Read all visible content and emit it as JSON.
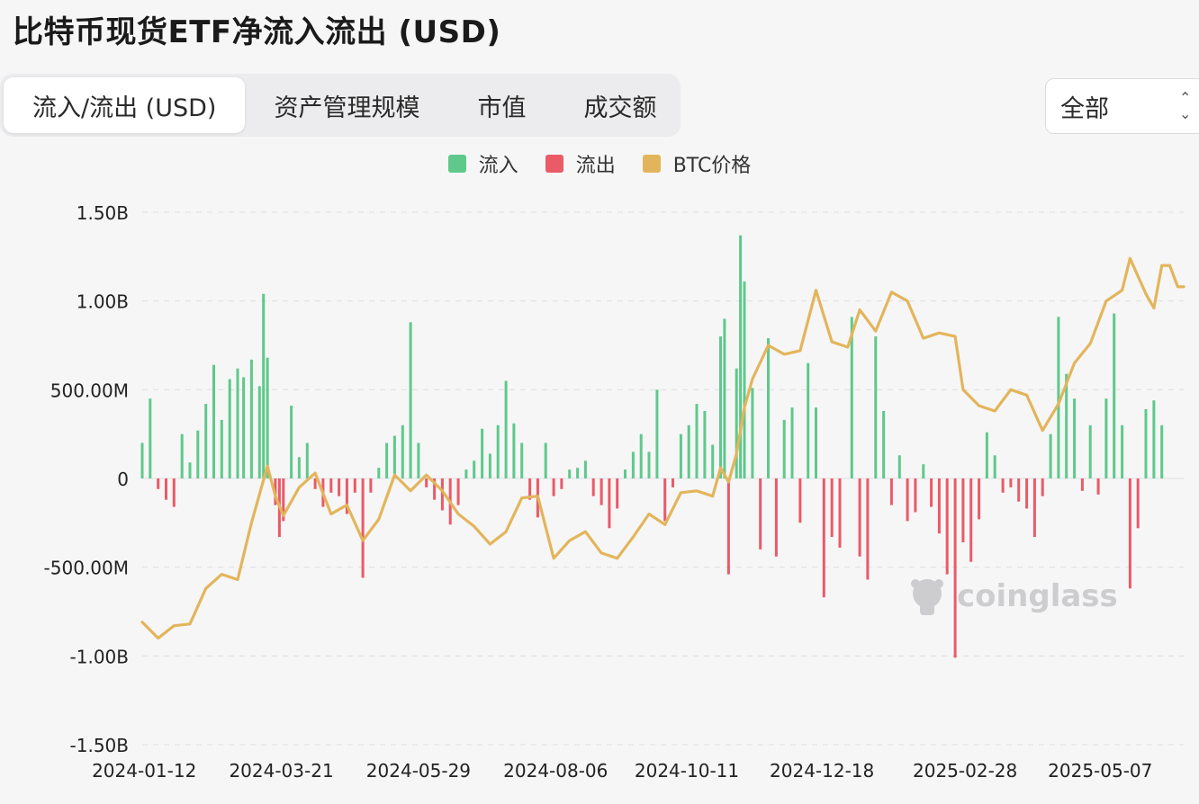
{
  "header": {
    "title": "比特币现货ETF净流入流出 (USD)"
  },
  "tabs": [
    {
      "label": "流入/流出 (USD)",
      "active": true
    },
    {
      "label": "资产管理规模",
      "active": false
    },
    {
      "label": "市值",
      "active": false
    },
    {
      "label": "成交额",
      "active": false
    }
  ],
  "range_select": {
    "value": "全部"
  },
  "colors": {
    "inflow": "#5ec98b",
    "outflow": "#ea5a67",
    "price": "#e3b55b"
  },
  "watermark": {
    "text": "coinglass",
    "icon": "coinglass-logo-icon"
  },
  "chart_data": {
    "type": "bar",
    "title": "",
    "xlabel": "",
    "ylabel": "",
    "ylim": [
      -1500000000,
      1500000000
    ],
    "yticks": [
      {
        "value": 1500000000,
        "label": "1.50B"
      },
      {
        "value": 1000000000,
        "label": "1.00B"
      },
      {
        "value": 500000000,
        "label": "500.00M"
      },
      {
        "value": 0,
        "label": "0"
      },
      {
        "value": -500000000,
        "label": "-500.00M"
      },
      {
        "value": -1000000000,
        "label": "-1.00B"
      },
      {
        "value": -1500000000,
        "label": "-1.50B"
      }
    ],
    "xlim": [
      "2024-01-11",
      "2025-06-18"
    ],
    "xticks": [
      "2024-01-12",
      "2024-03-21",
      "2024-05-29",
      "2024-08-06",
      "2024-10-11",
      "2024-12-18",
      "2025-02-28",
      "2025-05-07"
    ],
    "grid": true,
    "legend": {
      "position": "top-center",
      "entries": [
        "流入",
        "流出",
        "BTC价格"
      ]
    },
    "series": [
      {
        "name": "流入/流出",
        "kind": "bar",
        "points": [
          {
            "x": "2024-01-11",
            "y": 200000000
          },
          {
            "x": "2024-01-15",
            "y": 450000000
          },
          {
            "x": "2024-01-19",
            "y": -60000000
          },
          {
            "x": "2024-01-23",
            "y": -120000000
          },
          {
            "x": "2024-01-27",
            "y": -160000000
          },
          {
            "x": "2024-01-31",
            "y": 250000000
          },
          {
            "x": "2024-02-04",
            "y": 90000000
          },
          {
            "x": "2024-02-08",
            "y": 270000000
          },
          {
            "x": "2024-02-12",
            "y": 420000000
          },
          {
            "x": "2024-02-16",
            "y": 640000000
          },
          {
            "x": "2024-02-20",
            "y": 330000000
          },
          {
            "x": "2024-02-24",
            "y": 560000000
          },
          {
            "x": "2024-02-28",
            "y": 620000000
          },
          {
            "x": "2024-03-02",
            "y": 570000000
          },
          {
            "x": "2024-03-06",
            "y": 670000000
          },
          {
            "x": "2024-03-10",
            "y": 520000000
          },
          {
            "x": "2024-03-12",
            "y": 1040000000
          },
          {
            "x": "2024-03-14",
            "y": 680000000
          },
          {
            "x": "2024-03-18",
            "y": -150000000
          },
          {
            "x": "2024-03-20",
            "y": -330000000
          },
          {
            "x": "2024-03-22",
            "y": -240000000
          },
          {
            "x": "2024-03-26",
            "y": 410000000
          },
          {
            "x": "2024-03-30",
            "y": 120000000
          },
          {
            "x": "2024-04-03",
            "y": 200000000
          },
          {
            "x": "2024-04-07",
            "y": -60000000
          },
          {
            "x": "2024-04-11",
            "y": -160000000
          },
          {
            "x": "2024-04-15",
            "y": -80000000
          },
          {
            "x": "2024-04-19",
            "y": -100000000
          },
          {
            "x": "2024-04-23",
            "y": -200000000
          },
          {
            "x": "2024-04-27",
            "y": -80000000
          },
          {
            "x": "2024-05-01",
            "y": -560000000
          },
          {
            "x": "2024-05-05",
            "y": -80000000
          },
          {
            "x": "2024-05-09",
            "y": 60000000
          },
          {
            "x": "2024-05-13",
            "y": 200000000
          },
          {
            "x": "2024-05-17",
            "y": 240000000
          },
          {
            "x": "2024-05-21",
            "y": 300000000
          },
          {
            "x": "2024-05-25",
            "y": 880000000
          },
          {
            "x": "2024-05-29",
            "y": 200000000
          },
          {
            "x": "2024-06-02",
            "y": -50000000
          },
          {
            "x": "2024-06-06",
            "y": -120000000
          },
          {
            "x": "2024-06-10",
            "y": -180000000
          },
          {
            "x": "2024-06-14",
            "y": -260000000
          },
          {
            "x": "2024-06-18",
            "y": -150000000
          },
          {
            "x": "2024-06-22",
            "y": 50000000
          },
          {
            "x": "2024-06-26",
            "y": 100000000
          },
          {
            "x": "2024-06-30",
            "y": 280000000
          },
          {
            "x": "2024-07-04",
            "y": 140000000
          },
          {
            "x": "2024-07-08",
            "y": 300000000
          },
          {
            "x": "2024-07-12",
            "y": 550000000
          },
          {
            "x": "2024-07-16",
            "y": 310000000
          },
          {
            "x": "2024-07-20",
            "y": 200000000
          },
          {
            "x": "2024-07-24",
            "y": -120000000
          },
          {
            "x": "2024-07-28",
            "y": -220000000
          },
          {
            "x": "2024-08-01",
            "y": 200000000
          },
          {
            "x": "2024-08-05",
            "y": -100000000
          },
          {
            "x": "2024-08-09",
            "y": -60000000
          },
          {
            "x": "2024-08-13",
            "y": 50000000
          },
          {
            "x": "2024-08-17",
            "y": 60000000
          },
          {
            "x": "2024-08-21",
            "y": 100000000
          },
          {
            "x": "2024-08-25",
            "y": -100000000
          },
          {
            "x": "2024-08-29",
            "y": -150000000
          },
          {
            "x": "2024-09-02",
            "y": -280000000
          },
          {
            "x": "2024-09-06",
            "y": -170000000
          },
          {
            "x": "2024-09-10",
            "y": 50000000
          },
          {
            "x": "2024-09-14",
            "y": 150000000
          },
          {
            "x": "2024-09-18",
            "y": 250000000
          },
          {
            "x": "2024-09-22",
            "y": 150000000
          },
          {
            "x": "2024-09-26",
            "y": 500000000
          },
          {
            "x": "2024-09-30",
            "y": -240000000
          },
          {
            "x": "2024-10-04",
            "y": -50000000
          },
          {
            "x": "2024-10-08",
            "y": 250000000
          },
          {
            "x": "2024-10-12",
            "y": 300000000
          },
          {
            "x": "2024-10-16",
            "y": 420000000
          },
          {
            "x": "2024-10-20",
            "y": 380000000
          },
          {
            "x": "2024-10-24",
            "y": 190000000
          },
          {
            "x": "2024-10-28",
            "y": 800000000
          },
          {
            "x": "2024-10-30",
            "y": 900000000
          },
          {
            "x": "2024-11-01",
            "y": -540000000
          },
          {
            "x": "2024-11-05",
            "y": 620000000
          },
          {
            "x": "2024-11-07",
            "y": 1370000000
          },
          {
            "x": "2024-11-09",
            "y": 1110000000
          },
          {
            "x": "2024-11-13",
            "y": 510000000
          },
          {
            "x": "2024-11-17",
            "y": -400000000
          },
          {
            "x": "2024-11-21",
            "y": 790000000
          },
          {
            "x": "2024-11-25",
            "y": -440000000
          },
          {
            "x": "2024-11-29",
            "y": 330000000
          },
          {
            "x": "2024-12-03",
            "y": 400000000
          },
          {
            "x": "2024-12-07",
            "y": -250000000
          },
          {
            "x": "2024-12-11",
            "y": 650000000
          },
          {
            "x": "2024-12-15",
            "y": 400000000
          },
          {
            "x": "2024-12-19",
            "y": -670000000
          },
          {
            "x": "2024-12-23",
            "y": -330000000
          },
          {
            "x": "2024-12-27",
            "y": -390000000
          },
          {
            "x": "2025-01-02",
            "y": 910000000
          },
          {
            "x": "2025-01-06",
            "y": -440000000
          },
          {
            "x": "2025-01-10",
            "y": -570000000
          },
          {
            "x": "2025-01-14",
            "y": 800000000
          },
          {
            "x": "2025-01-18",
            "y": 380000000
          },
          {
            "x": "2025-01-22",
            "y": -150000000
          },
          {
            "x": "2025-01-26",
            "y": 130000000
          },
          {
            "x": "2025-01-30",
            "y": -240000000
          },
          {
            "x": "2025-02-03",
            "y": -190000000
          },
          {
            "x": "2025-02-07",
            "y": 80000000
          },
          {
            "x": "2025-02-11",
            "y": -160000000
          },
          {
            "x": "2025-02-15",
            "y": -310000000
          },
          {
            "x": "2025-02-19",
            "y": -540000000
          },
          {
            "x": "2025-02-23",
            "y": -1010000000
          },
          {
            "x": "2025-02-27",
            "y": -360000000
          },
          {
            "x": "2025-03-03",
            "y": -470000000
          },
          {
            "x": "2025-03-07",
            "y": -230000000
          },
          {
            "x": "2025-03-11",
            "y": 260000000
          },
          {
            "x": "2025-03-15",
            "y": 130000000
          },
          {
            "x": "2025-03-19",
            "y": -80000000
          },
          {
            "x": "2025-03-23",
            "y": -50000000
          },
          {
            "x": "2025-03-27",
            "y": -130000000
          },
          {
            "x": "2025-03-31",
            "y": -170000000
          },
          {
            "x": "2025-04-04",
            "y": -330000000
          },
          {
            "x": "2025-04-08",
            "y": -100000000
          },
          {
            "x": "2025-04-12",
            "y": 250000000
          },
          {
            "x": "2025-04-16",
            "y": 910000000
          },
          {
            "x": "2025-04-20",
            "y": 590000000
          },
          {
            "x": "2025-04-24",
            "y": 450000000
          },
          {
            "x": "2025-04-28",
            "y": -70000000
          },
          {
            "x": "2025-05-02",
            "y": 300000000
          },
          {
            "x": "2025-05-06",
            "y": -90000000
          },
          {
            "x": "2025-05-10",
            "y": 450000000
          },
          {
            "x": "2025-05-14",
            "y": 930000000
          },
          {
            "x": "2025-05-18",
            "y": 300000000
          },
          {
            "x": "2025-05-22",
            "y": -620000000
          },
          {
            "x": "2025-05-26",
            "y": -280000000
          },
          {
            "x": "2025-05-30",
            "y": 390000000
          },
          {
            "x": "2025-06-03",
            "y": 440000000
          },
          {
            "x": "2025-06-07",
            "y": 300000000
          }
        ]
      },
      {
        "name": "BTC价格",
        "kind": "line",
        "axis": "unlabeled-secondary",
        "points": [
          {
            "x": "2024-01-11",
            "y": -810000000
          },
          {
            "x": "2024-01-19",
            "y": -900000000
          },
          {
            "x": "2024-01-27",
            "y": -830000000
          },
          {
            "x": "2024-02-04",
            "y": -820000000
          },
          {
            "x": "2024-02-12",
            "y": -620000000
          },
          {
            "x": "2024-02-20",
            "y": -540000000
          },
          {
            "x": "2024-02-28",
            "y": -570000000
          },
          {
            "x": "2024-03-06",
            "y": -250000000
          },
          {
            "x": "2024-03-14",
            "y": 70000000
          },
          {
            "x": "2024-03-18",
            "y": -100000000
          },
          {
            "x": "2024-03-22",
            "y": -210000000
          },
          {
            "x": "2024-03-30",
            "y": -50000000
          },
          {
            "x": "2024-04-07",
            "y": 30000000
          },
          {
            "x": "2024-04-15",
            "y": -200000000
          },
          {
            "x": "2024-04-23",
            "y": -150000000
          },
          {
            "x": "2024-05-01",
            "y": -350000000
          },
          {
            "x": "2024-05-09",
            "y": -230000000
          },
          {
            "x": "2024-05-17",
            "y": 20000000
          },
          {
            "x": "2024-05-25",
            "y": -70000000
          },
          {
            "x": "2024-06-02",
            "y": 20000000
          },
          {
            "x": "2024-06-10",
            "y": -70000000
          },
          {
            "x": "2024-06-18",
            "y": -200000000
          },
          {
            "x": "2024-06-26",
            "y": -270000000
          },
          {
            "x": "2024-07-04",
            "y": -370000000
          },
          {
            "x": "2024-07-12",
            "y": -300000000
          },
          {
            "x": "2024-07-20",
            "y": -110000000
          },
          {
            "x": "2024-07-28",
            "y": -100000000
          },
          {
            "x": "2024-08-05",
            "y": -450000000
          },
          {
            "x": "2024-08-13",
            "y": -350000000
          },
          {
            "x": "2024-08-21",
            "y": -300000000
          },
          {
            "x": "2024-08-29",
            "y": -420000000
          },
          {
            "x": "2024-09-06",
            "y": -450000000
          },
          {
            "x": "2024-09-14",
            "y": -330000000
          },
          {
            "x": "2024-09-22",
            "y": -200000000
          },
          {
            "x": "2024-09-30",
            "y": -260000000
          },
          {
            "x": "2024-10-08",
            "y": -80000000
          },
          {
            "x": "2024-10-16",
            "y": -70000000
          },
          {
            "x": "2024-10-24",
            "y": -100000000
          },
          {
            "x": "2024-10-28",
            "y": 60000000
          },
          {
            "x": "2024-11-01",
            "y": -20000000
          },
          {
            "x": "2024-11-05",
            "y": 140000000
          },
          {
            "x": "2024-11-09",
            "y": 400000000
          },
          {
            "x": "2024-11-13",
            "y": 560000000
          },
          {
            "x": "2024-11-21",
            "y": 750000000
          },
          {
            "x": "2024-11-29",
            "y": 700000000
          },
          {
            "x": "2024-12-07",
            "y": 720000000
          },
          {
            "x": "2024-12-15",
            "y": 1060000000
          },
          {
            "x": "2024-12-23",
            "y": 770000000
          },
          {
            "x": "2024-12-31",
            "y": 740000000
          },
          {
            "x": "2025-01-06",
            "y": 950000000
          },
          {
            "x": "2025-01-14",
            "y": 830000000
          },
          {
            "x": "2025-01-22",
            "y": 1050000000
          },
          {
            "x": "2025-01-30",
            "y": 1000000000
          },
          {
            "x": "2025-02-07",
            "y": 790000000
          },
          {
            "x": "2025-02-15",
            "y": 820000000
          },
          {
            "x": "2025-02-23",
            "y": 800000000
          },
          {
            "x": "2025-02-27",
            "y": 500000000
          },
          {
            "x": "2025-03-07",
            "y": 410000000
          },
          {
            "x": "2025-03-15",
            "y": 380000000
          },
          {
            "x": "2025-03-23",
            "y": 500000000
          },
          {
            "x": "2025-03-31",
            "y": 470000000
          },
          {
            "x": "2025-04-08",
            "y": 270000000
          },
          {
            "x": "2025-04-16",
            "y": 420000000
          },
          {
            "x": "2025-04-24",
            "y": 650000000
          },
          {
            "x": "2025-05-02",
            "y": 760000000
          },
          {
            "x": "2025-05-10",
            "y": 1000000000
          },
          {
            "x": "2025-05-18",
            "y": 1060000000
          },
          {
            "x": "2025-05-22",
            "y": 1240000000
          },
          {
            "x": "2025-05-30",
            "y": 1040000000
          },
          {
            "x": "2025-06-03",
            "y": 960000000
          },
          {
            "x": "2025-06-07",
            "y": 1200000000
          },
          {
            "x": "2025-06-11",
            "y": 1200000000
          },
          {
            "x": "2025-06-15",
            "y": 1080000000
          },
          {
            "x": "2025-06-18",
            "y": 1080000000
          }
        ]
      }
    ]
  }
}
